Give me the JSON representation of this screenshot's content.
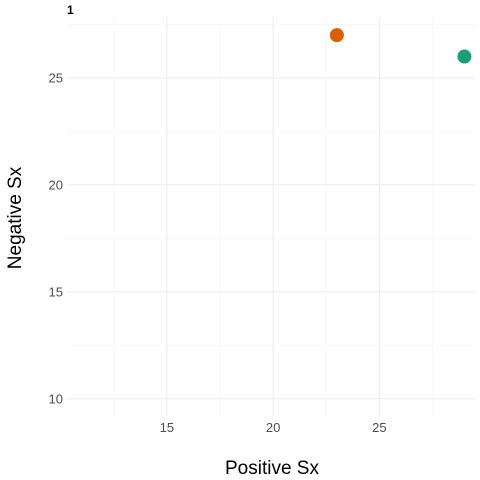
{
  "chart_data": {
    "type": "scatter",
    "tag": "1",
    "xlabel": "Positive Sx",
    "ylabel": "Negative Sx",
    "xlim": [
      10.3,
      29.5
    ],
    "ylim": [
      9.2,
      27.8
    ],
    "x_ticks": [
      15,
      20,
      25
    ],
    "y_ticks": [
      10,
      15,
      20,
      25
    ],
    "x_minor": [
      12.5,
      17.5,
      22.5,
      27.5
    ],
    "y_minor": [
      12.5,
      17.5,
      22.5,
      27.5
    ],
    "grid": true,
    "points": [
      {
        "x": 23,
        "y": 27,
        "color": "#d95f02"
      },
      {
        "x": 29,
        "y": 26,
        "color": "#1b9e77"
      }
    ]
  }
}
